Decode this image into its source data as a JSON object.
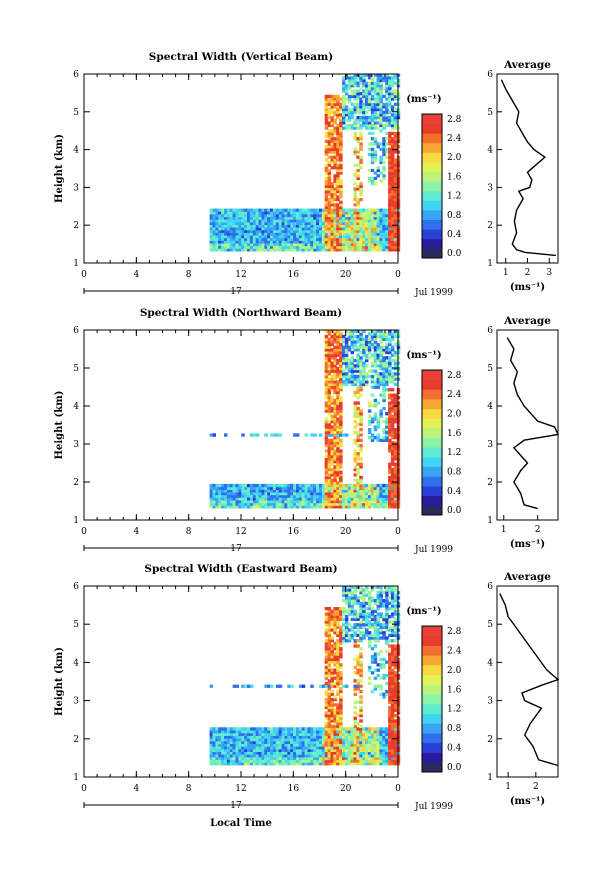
{
  "figure": {
    "xlabel": "Local Time",
    "day_label": "17",
    "month_label": "Jul 1999"
  },
  "chart_data": [
    {
      "type": "heatmap",
      "title": "Spectral Width (Vertical Beam)",
      "xlabel": "Local Time",
      "ylabel": "Height (km)",
      "xlim": [
        0,
        24
      ],
      "ylim": [
        1,
        6
      ],
      "xticks": [
        "0",
        "4",
        "8",
        "12",
        "16",
        "20",
        "0"
      ],
      "yticks": [
        "1",
        "2",
        "3",
        "4",
        "5",
        "6"
      ],
      "colorbar": {
        "label": "(ms⁻¹)",
        "ticks": [
          "2.8",
          "2.4",
          "2.0",
          "1.6",
          "1.2",
          "0.8",
          "0.4",
          "0.0"
        ],
        "range": [
          0,
          3.0
        ]
      },
      "profile": {
        "title": "Average",
        "xlabel": "(ms⁻¹)",
        "xticks": [
          "1",
          "2",
          "3"
        ],
        "xlim": [
          0.6,
          3.4
        ],
        "ylim": [
          1,
          6
        ],
        "yticks": [
          "1",
          "2",
          "3",
          "4",
          "5",
          "6"
        ],
        "points": [
          [
            3.3,
            1.2
          ],
          [
            1.9,
            1.28
          ],
          [
            1.5,
            1.35
          ],
          [
            1.3,
            1.5
          ],
          [
            1.5,
            1.8
          ],
          [
            1.4,
            2.1
          ],
          [
            1.5,
            2.4
          ],
          [
            1.8,
            2.7
          ],
          [
            1.6,
            2.9
          ],
          [
            2.1,
            3.0
          ],
          [
            2.2,
            3.2
          ],
          [
            2.0,
            3.4
          ],
          [
            2.4,
            3.6
          ],
          [
            2.8,
            3.8
          ],
          [
            2.3,
            4.0
          ],
          [
            2.0,
            4.2
          ],
          [
            1.8,
            4.4
          ],
          [
            1.5,
            4.7
          ],
          [
            1.6,
            5.0
          ],
          [
            1.3,
            5.3
          ],
          [
            1.0,
            5.6
          ],
          [
            0.8,
            5.85
          ]
        ]
      }
    },
    {
      "type": "heatmap",
      "title": "Spectral Width (Northward Beam)",
      "xlabel": "Local Time",
      "ylabel": "Height (km)",
      "xlim": [
        0,
        24
      ],
      "ylim": [
        1,
        6
      ],
      "xticks": [
        "0",
        "4",
        "8",
        "12",
        "16",
        "20",
        "0"
      ],
      "yticks": [
        "1",
        "2",
        "3",
        "4",
        "5",
        "6"
      ],
      "colorbar": {
        "label": "(ms⁻¹)",
        "ticks": [
          "2.8",
          "2.4",
          "2.0",
          "1.6",
          "1.2",
          "0.8",
          "0.4",
          "0.0"
        ],
        "range": [
          0,
          3.0
        ]
      },
      "profile": {
        "title": "Average",
        "xlabel": "(ms⁻¹)",
        "xticks": [
          "1",
          "2"
        ],
        "xlim": [
          0.8,
          2.6
        ],
        "ylim": [
          1,
          6
        ],
        "yticks": [
          "1",
          "2",
          "3",
          "4",
          "5",
          "6"
        ],
        "points": [
          [
            2.0,
            1.3
          ],
          [
            1.6,
            1.4
          ],
          [
            1.5,
            1.7
          ],
          [
            1.3,
            2.0
          ],
          [
            1.5,
            2.3
          ],
          [
            1.7,
            2.5
          ],
          [
            1.5,
            2.7
          ],
          [
            1.3,
            2.9
          ],
          [
            1.6,
            3.1
          ],
          [
            2.6,
            3.25
          ],
          [
            2.5,
            3.45
          ],
          [
            2.0,
            3.6
          ],
          [
            1.8,
            3.8
          ],
          [
            1.6,
            4.0
          ],
          [
            1.4,
            4.3
          ],
          [
            1.3,
            4.6
          ],
          [
            1.4,
            4.9
          ],
          [
            1.2,
            5.2
          ],
          [
            1.3,
            5.5
          ],
          [
            1.1,
            5.8
          ]
        ]
      }
    },
    {
      "type": "heatmap",
      "title": "Spectral Width (Eastward Beam)",
      "xlabel": "Local Time",
      "ylabel": "Height (km)",
      "xlim": [
        0,
        24
      ],
      "ylim": [
        1,
        6
      ],
      "xticks": [
        "0",
        "4",
        "8",
        "12",
        "16",
        "20",
        "0"
      ],
      "yticks": [
        "1",
        "2",
        "3",
        "4",
        "5",
        "6"
      ],
      "colorbar": {
        "label": "(ms⁻¹)",
        "ticks": [
          "2.8",
          "2.4",
          "2.0",
          "1.6",
          "1.2",
          "0.8",
          "0.4",
          "0.0"
        ],
        "range": [
          0,
          3.0
        ]
      },
      "profile": {
        "title": "Average",
        "xlabel": "(ms⁻¹)",
        "xticks": [
          "1",
          "2"
        ],
        "xlim": [
          0.6,
          2.8
        ],
        "ylim": [
          1,
          6
        ],
        "yticks": [
          "1",
          "2",
          "3",
          "4",
          "5",
          "6"
        ],
        "points": [
          [
            2.8,
            1.3
          ],
          [
            2.1,
            1.45
          ],
          [
            1.9,
            1.8
          ],
          [
            1.6,
            2.1
          ],
          [
            1.8,
            2.4
          ],
          [
            2.0,
            2.6
          ],
          [
            2.2,
            2.8
          ],
          [
            1.6,
            3.0
          ],
          [
            1.5,
            3.2
          ],
          [
            2.2,
            3.4
          ],
          [
            2.8,
            3.55
          ],
          [
            2.4,
            3.8
          ],
          [
            2.1,
            4.1
          ],
          [
            1.9,
            4.3
          ],
          [
            1.6,
            4.6
          ],
          [
            1.3,
            4.9
          ],
          [
            1.0,
            5.2
          ],
          [
            0.9,
            5.5
          ],
          [
            0.7,
            5.8
          ]
        ]
      }
    }
  ]
}
